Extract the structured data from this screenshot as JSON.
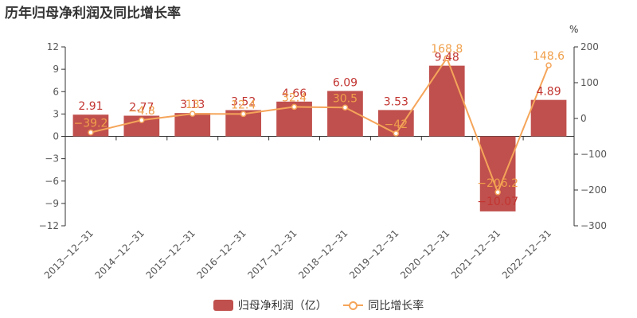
{
  "title": "历年归母净利润及同比增长率",
  "legend": {
    "bar": "归母净利润（亿）",
    "line": "同比增长率"
  },
  "colors": {
    "bar": "#c0504d",
    "line": "#f5a55a",
    "bar_label": "#c23531",
    "line_label": "#f0a04b"
  },
  "chart_data": {
    "type": "bar",
    "title": "历年归母净利润及同比增长率",
    "categories": [
      "2013-12-31",
      "2014-12-31",
      "2015-12-31",
      "2016-12-31",
      "2017-12-31",
      "2018-12-31",
      "2019-12-31",
      "2020-12-31",
      "2021-12-31",
      "2022-12-31"
    ],
    "series": [
      {
        "name": "归母净利润（亿）",
        "type": "bar",
        "axis": "left",
        "values": [
          2.91,
          2.77,
          3.13,
          3.52,
          4.66,
          6.09,
          3.53,
          9.48,
          -10.07,
          4.89
        ],
        "labels": [
          "2.91",
          "2.77",
          "3.13",
          "3.52",
          "4.66",
          "6.09",
          "3.53",
          "9.48",
          "−10.07",
          "4.89"
        ]
      },
      {
        "name": "同比增长率",
        "type": "line",
        "axis": "right",
        "values": [
          -39.2,
          -4.8,
          13,
          12.4,
          32.4,
          30.5,
          -42,
          168.8,
          -206.2,
          148.6
        ],
        "labels": [
          "−39.2",
          "−4.8",
          "13",
          "12.4",
          "32.4",
          "30.5",
          "−42",
          "168.8",
          "−206.2",
          "148.6"
        ]
      }
    ],
    "y_left": {
      "min": -12,
      "max": 12,
      "ticks": [
        12,
        9,
        6,
        3,
        0,
        -3,
        -6,
        -9,
        -12
      ],
      "tick_labels": [
        "12",
        "9",
        "6",
        "3",
        "0",
        "−3",
        "−6",
        "−9",
        "−12"
      ]
    },
    "y_right": {
      "min": -300,
      "max": 200,
      "ticks": [
        200,
        100,
        0,
        -100,
        -200,
        -300
      ],
      "tick_labels": [
        "200",
        "100",
        "0",
        "−100",
        "−200",
        "−300"
      ],
      "unit": "%"
    },
    "x_tick_labels": [
      "2013−12−31",
      "2014−12−31",
      "2015−12−31",
      "2016−12−31",
      "2017−12−31",
      "2018−12−31",
      "2019−12−31",
      "2020−12−31",
      "2021−12−31",
      "2022−12−31"
    ],
    "grid": false,
    "legend_position": "bottom"
  }
}
